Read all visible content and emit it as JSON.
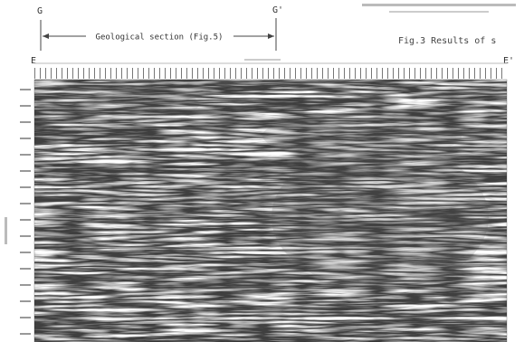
{
  "header": {
    "left_marker": "G",
    "right_marker": "G'",
    "section_label": "Geological section (Fig.5)",
    "figure_title": "Fig.3 Results of s"
  },
  "profile": {
    "start": "E",
    "end": "E'"
  }
}
